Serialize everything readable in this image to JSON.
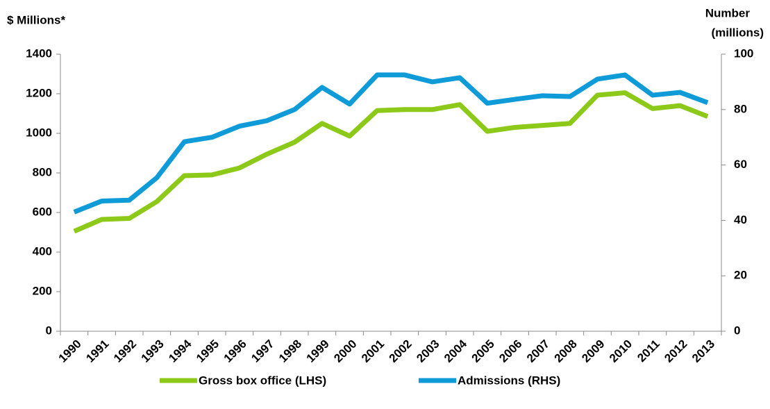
{
  "chart_data": {
    "type": "line",
    "y_label": "$ Millions*",
    "y2_label": [
      "Number",
      "(millions)"
    ],
    "categories": [
      "1990",
      "1991",
      "1992",
      "1993",
      "1994",
      "1995",
      "1996",
      "1997",
      "1998",
      "1999",
      "2000",
      "2001",
      "2002",
      "2003",
      "2004",
      "2005",
      "2006",
      "2007",
      "2008",
      "2009",
      "2010",
      "2011",
      "2012",
      "2013"
    ],
    "series": [
      {
        "name": "Gross box office (LHS)",
        "color": "#8cc919",
        "axis": "y",
        "values": [
          505,
          565,
          570,
          655,
          786,
          790,
          825,
          895,
          955,
          1050,
          986,
          1115,
          1120,
          1120,
          1145,
          1010,
          1030,
          1040,
          1050,
          1193,
          1205,
          1125,
          1140,
          1085
        ]
      },
      {
        "name": "Admissions (RHS)",
        "color": "#0f9bd8",
        "axis": "y2",
        "values": [
          43,
          47,
          47.3,
          55.4,
          68.4,
          70,
          74,
          76,
          80,
          88,
          82,
          92.5,
          92.5,
          90,
          91.5,
          82.3,
          83.7,
          85,
          84.7,
          91,
          92.5,
          85.2,
          86.2,
          82.5
        ]
      }
    ],
    "ylim": [
      0,
      1400
    ],
    "yticks": [
      0,
      200,
      400,
      600,
      800,
      1000,
      1200,
      1400
    ],
    "y2lim": [
      0,
      100
    ],
    "y2ticks": [
      0,
      20,
      40,
      60,
      80,
      100
    ],
    "legend": "bottom"
  }
}
